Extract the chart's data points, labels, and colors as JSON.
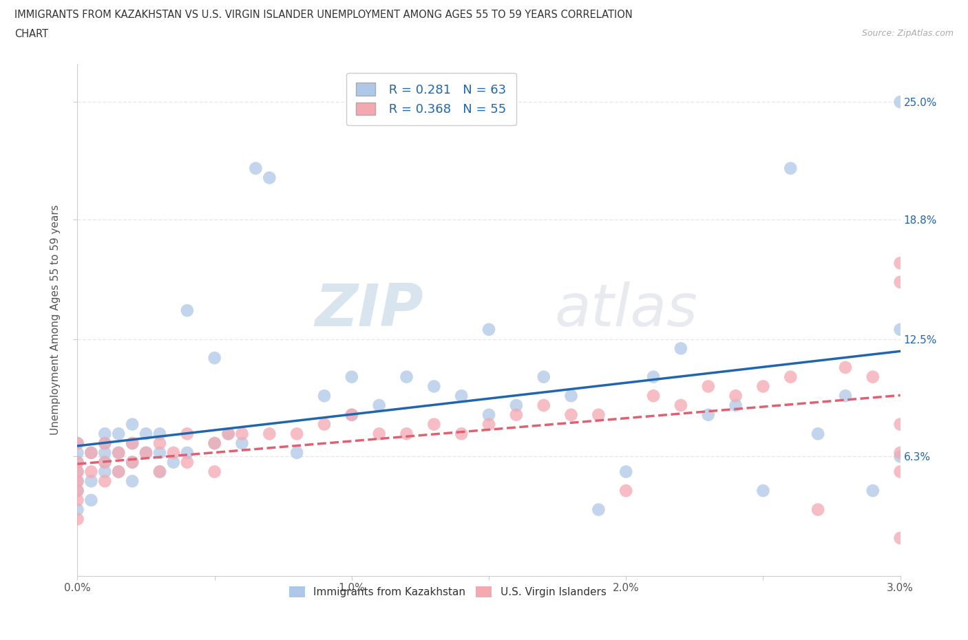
{
  "title_line1": "IMMIGRANTS FROM KAZAKHSTAN VS U.S. VIRGIN ISLANDER UNEMPLOYMENT AMONG AGES 55 TO 59 YEARS CORRELATION",
  "title_line2": "CHART",
  "source": "Source: ZipAtlas.com",
  "ylabel": "Unemployment Among Ages 55 to 59 years",
  "legend_label1": "Immigrants from Kazakhstan",
  "legend_label2": "U.S. Virgin Islanders",
  "r1": 0.281,
  "n1": 63,
  "r2": 0.368,
  "n2": 55,
  "color1": "#aec8e8",
  "color2": "#f4a8b0",
  "trend_color1": "#2166ac",
  "trend_color2": "#e06070",
  "xmin": 0.0,
  "xmax": 3.0,
  "ymin": 0.0,
  "ymax": 27.0,
  "yticks_right": [
    6.3,
    12.5,
    18.8,
    25.0
  ],
  "ytick_labels_right": [
    "6.3%",
    "12.5%",
    "18.8%",
    "25.0%"
  ],
  "xtick_values": [
    0.0,
    0.5,
    1.0,
    1.5,
    2.0,
    2.5,
    3.0
  ],
  "xtick_labels": [
    "0.0%",
    "",
    "1.0%",
    "",
    "2.0%",
    "",
    "3.0%"
  ],
  "watermark": "ZIPatlas",
  "background_color": "#ffffff",
  "grid_color": "#e8e8e8",
  "kazakhstan_x": [
    0.0,
    0.0,
    0.0,
    0.0,
    0.0,
    0.0,
    0.0,
    0.05,
    0.05,
    0.05,
    0.1,
    0.1,
    0.1,
    0.1,
    0.1,
    0.15,
    0.15,
    0.15,
    0.2,
    0.2,
    0.2,
    0.2,
    0.25,
    0.25,
    0.3,
    0.3,
    0.3,
    0.35,
    0.4,
    0.4,
    0.5,
    0.5,
    0.55,
    0.6,
    0.65,
    0.7,
    0.8,
    0.9,
    1.0,
    1.0,
    1.1,
    1.2,
    1.3,
    1.4,
    1.5,
    1.5,
    1.6,
    1.7,
    1.8,
    1.9,
    2.0,
    2.1,
    2.2,
    2.3,
    2.4,
    2.5,
    2.6,
    2.7,
    2.8,
    2.9,
    3.0,
    3.0,
    3.0
  ],
  "kazakhstan_y": [
    3.5,
    4.5,
    5.0,
    5.5,
    6.0,
    6.5,
    7.0,
    4.0,
    5.0,
    6.5,
    5.5,
    6.0,
    6.5,
    7.0,
    7.5,
    5.5,
    6.5,
    7.5,
    5.0,
    6.0,
    7.0,
    8.0,
    6.5,
    7.5,
    5.5,
    6.5,
    7.5,
    6.0,
    6.5,
    14.0,
    7.0,
    11.5,
    7.5,
    7.0,
    21.5,
    21.0,
    6.5,
    9.5,
    8.5,
    10.5,
    9.0,
    10.5,
    10.0,
    9.5,
    8.5,
    13.0,
    9.0,
    10.5,
    9.5,
    3.5,
    5.5,
    10.5,
    12.0,
    8.5,
    9.0,
    4.5,
    21.5,
    7.5,
    9.5,
    4.5,
    6.3,
    13.0,
    25.0
  ],
  "virgin_x": [
    0.0,
    0.0,
    0.0,
    0.0,
    0.0,
    0.0,
    0.0,
    0.05,
    0.05,
    0.1,
    0.1,
    0.1,
    0.15,
    0.15,
    0.2,
    0.2,
    0.25,
    0.3,
    0.3,
    0.35,
    0.4,
    0.4,
    0.5,
    0.5,
    0.55,
    0.6,
    0.7,
    0.8,
    0.9,
    1.0,
    1.1,
    1.2,
    1.3,
    1.4,
    1.5,
    1.6,
    1.7,
    1.8,
    1.9,
    2.0,
    2.1,
    2.2,
    2.3,
    2.4,
    2.5,
    2.6,
    2.7,
    2.8,
    2.9,
    3.0,
    3.0,
    3.0,
    3.0,
    3.0,
    3.0
  ],
  "virgin_y": [
    3.0,
    4.0,
    4.5,
    5.0,
    5.5,
    6.0,
    7.0,
    5.5,
    6.5,
    5.0,
    6.0,
    7.0,
    5.5,
    6.5,
    6.0,
    7.0,
    6.5,
    5.5,
    7.0,
    6.5,
    6.0,
    7.5,
    5.5,
    7.0,
    7.5,
    7.5,
    7.5,
    7.5,
    8.0,
    8.5,
    7.5,
    7.5,
    8.0,
    7.5,
    8.0,
    8.5,
    9.0,
    8.5,
    8.5,
    4.5,
    9.5,
    9.0,
    10.0,
    9.5,
    10.0,
    10.5,
    3.5,
    11.0,
    10.5,
    2.0,
    5.5,
    6.5,
    8.0,
    15.5,
    16.5
  ]
}
